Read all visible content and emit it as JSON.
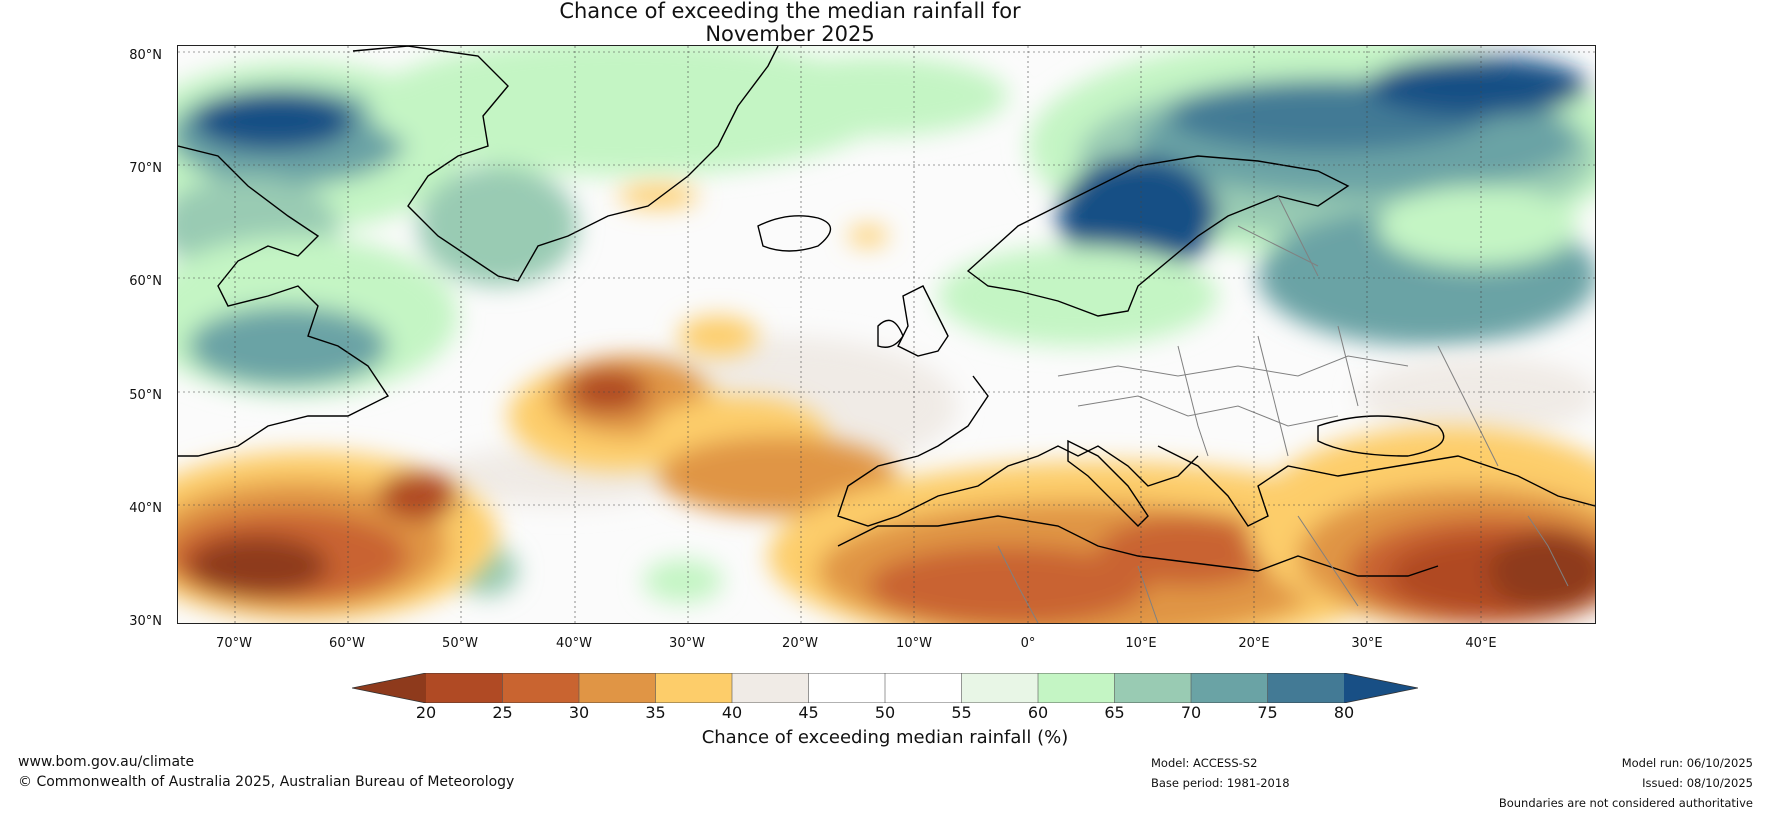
{
  "title": {
    "line1": "Chance of exceeding the median rainfall for",
    "line2": "November 2025"
  },
  "map": {
    "region": "North Atlantic and Europe",
    "lat_range": [
      30,
      80
    ],
    "lon_range": [
      -75,
      50
    ],
    "lat_labels": [
      "80°N",
      "70°N",
      "60°N",
      "50°N",
      "40°N",
      "30°N"
    ],
    "lon_labels": [
      "70°W",
      "60°W",
      "50°W",
      "40°W",
      "30°W",
      "20°W",
      "10°W",
      "0°",
      "10°E",
      "20°E",
      "30°E",
      "40°E"
    ]
  },
  "colorbar": {
    "label": "Chance of exceeding median rainfall (%)",
    "ticks": [
      "20",
      "25",
      "30",
      "35",
      "40",
      "45",
      "50",
      "55",
      "60",
      "65",
      "70",
      "75",
      "80"
    ],
    "colors": [
      "#8e3a1c",
      "#b04a24",
      "#c96430",
      "#e09545",
      "#fdcd6a",
      "#f0ebe6",
      "#ffffff",
      "#ffffff",
      "#e8f6e6",
      "#c4f5c4",
      "#99cbb3",
      "#6aa3a5",
      "#437a95",
      "#184f85"
    ]
  },
  "footer": {
    "website": "www.bom.gov.au/climate",
    "copyright": "© Commonwealth of Australia 2025, Australian Bureau of Meteorology",
    "model": "Model: ACCESS-S2",
    "base_period": "Base period: 1981-2018",
    "model_run": "Model run: 06/10/2025",
    "issued": "Issued: 08/10/2025",
    "disclaimer": "Boundaries are not considered authoritative"
  }
}
